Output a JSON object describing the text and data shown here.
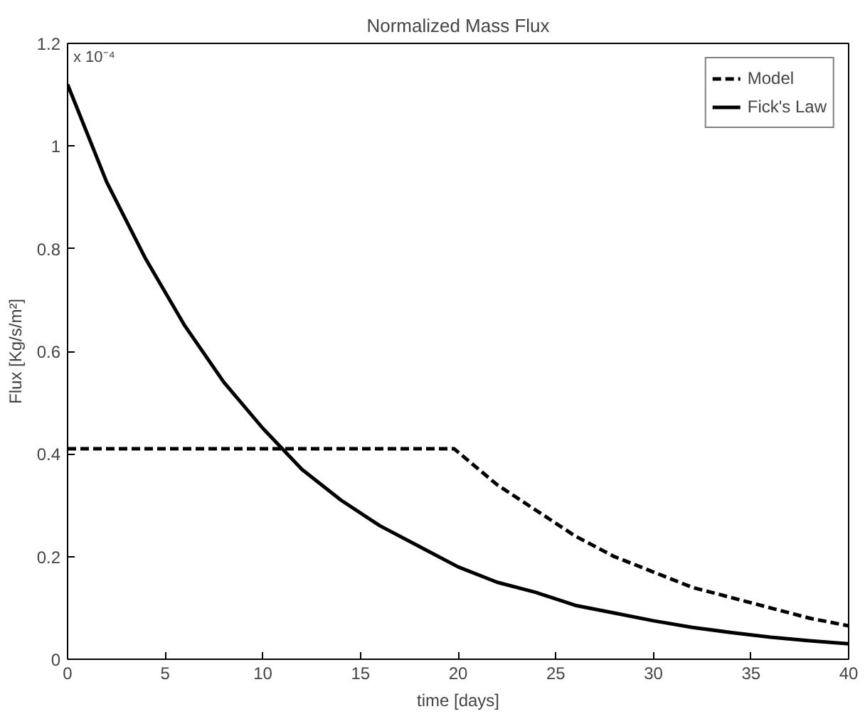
{
  "chart_data": {
    "type": "line",
    "title": "Normalized Mass Flux",
    "xlabel": "time [days]",
    "ylabel": "Flux [Kg/s/m²]",
    "annotations": [
      "x 10⁻⁴"
    ],
    "xlim": [
      0,
      40
    ],
    "ylim": [
      0,
      1.2
    ],
    "xticks": [
      0,
      5,
      10,
      15,
      20,
      25,
      30,
      35,
      40
    ],
    "yticks": [
      0,
      0.2,
      0.4,
      0.6,
      0.8,
      1,
      1.2
    ],
    "grid": false,
    "legend": "top right",
    "series": [
      {
        "name": "Model",
        "color": "#000000",
        "line_style": "dashed",
        "x": [
          0,
          19.8,
          22,
          24,
          26,
          28,
          30,
          32,
          34,
          36,
          38,
          40
        ],
        "values": [
          0.41,
          0.41,
          0.34,
          0.29,
          0.24,
          0.2,
          0.17,
          0.14,
          0.12,
          0.1,
          0.08,
          0.065
        ]
      },
      {
        "name": "Fick's Law",
        "color": "#000000",
        "line_style": "solid",
        "x": [
          0,
          2,
          4,
          6,
          8,
          10,
          12,
          14,
          16,
          18,
          20,
          22,
          24,
          26,
          28,
          30,
          32,
          34,
          36,
          38,
          40
        ],
        "values": [
          1.12,
          0.93,
          0.78,
          0.65,
          0.54,
          0.45,
          0.37,
          0.31,
          0.26,
          0.22,
          0.18,
          0.15,
          0.13,
          0.105,
          0.09,
          0.075,
          0.062,
          0.052,
          0.043,
          0.036,
          0.03
        ]
      }
    ]
  }
}
